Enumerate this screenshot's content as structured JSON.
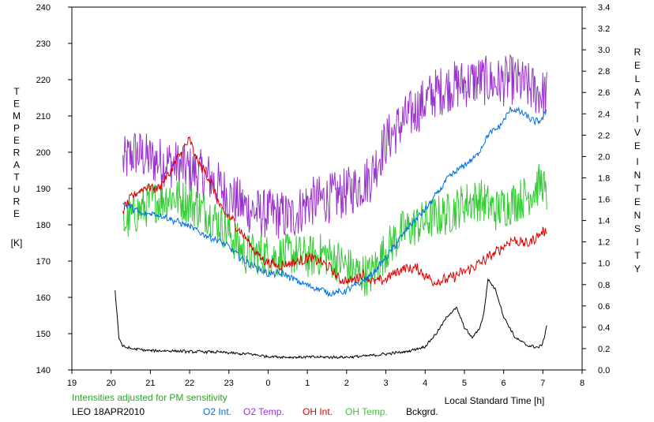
{
  "chart_data": {
    "type": "line",
    "title": "",
    "xlabel": "Local Standard Time [h]",
    "ylabel_left": "TEMPERATURE [K]",
    "ylabel_right": "RELATIVE INTENSITY",
    "ylabel_left_letters": [
      "T",
      "E",
      "M",
      "P",
      "E",
      "R",
      "A",
      "T",
      "U",
      "R",
      "E"
    ],
    "ylabel_left_unit": "[K]",
    "ylabel_right_letters_1": [
      "R",
      "E",
      "L",
      "A",
      "T",
      "I",
      "V",
      "E"
    ],
    "ylabel_right_letters_2": [
      "I",
      "N",
      "T",
      "E",
      "N",
      "S",
      "I",
      "T",
      "Y"
    ],
    "xlim": [
      19,
      32
    ],
    "ylim_left": [
      140,
      240
    ],
    "ylim_right": [
      0.0,
      3.4
    ],
    "x_ticks": [
      19,
      20,
      21,
      22,
      23,
      24,
      25,
      26,
      27,
      28,
      29,
      30,
      31,
      32
    ],
    "x_tick_labels": [
      "19",
      "20",
      "21",
      "22",
      "23",
      "0",
      "1",
      "2",
      "3",
      "4",
      "5",
      "6",
      "7",
      "8"
    ],
    "y_left_ticks": [
      "140",
      "150",
      "160",
      "170",
      "180",
      "190",
      "200",
      "210",
      "220",
      "230",
      "240"
    ],
    "y_right_ticks": [
      "0.0",
      "0.2",
      "0.4",
      "0.6",
      "0.8",
      "1.0",
      "1.2",
      "1.4",
      "1.6",
      "1.8",
      "2.0",
      "2.2",
      "2.4",
      "2.6",
      "2.8",
      "3.0",
      "3.2",
      "3.4"
    ],
    "grid": false,
    "note": "Intensities adjusted for PM sensitivity",
    "station": "LEO 18APR2010",
    "series": [
      {
        "name": "O2 Int.",
        "color": "#0070e0",
        "axis": "right",
        "noise": 0.02,
        "x": [
          20.3,
          20.5,
          20.8,
          21.0,
          21.3,
          21.6,
          21.9,
          22.2,
          22.5,
          22.8,
          23.0,
          23.3,
          23.6,
          24.0,
          24.4,
          24.8,
          25.2,
          25.6,
          25.9,
          26.3,
          26.6,
          27.0,
          27.3,
          27.6,
          28.0,
          28.3,
          28.6,
          29.0,
          29.3,
          29.6,
          29.9,
          30.2,
          30.5,
          30.8,
          31.0,
          31.1
        ],
        "y": [
          1.55,
          1.53,
          1.45,
          1.47,
          1.45,
          1.4,
          1.36,
          1.3,
          1.25,
          1.2,
          1.15,
          1.05,
          0.98,
          0.9,
          0.9,
          0.82,
          0.77,
          0.72,
          0.73,
          0.8,
          0.88,
          1.05,
          1.2,
          1.35,
          1.5,
          1.65,
          1.8,
          1.92,
          2.0,
          2.2,
          2.28,
          2.45,
          2.4,
          2.32,
          2.35,
          2.45
        ]
      },
      {
        "name": "O2 Temp.",
        "color": "#9933cc",
        "axis": "left",
        "noise": 7,
        "x": [
          20.3,
          20.6,
          21.0,
          21.5,
          22.0,
          22.5,
          23.0,
          23.4,
          23.8,
          24.2,
          24.6,
          25.0,
          25.4,
          25.8,
          26.2,
          26.6,
          27.0,
          27.4,
          27.8,
          28.2,
          28.6,
          29.0,
          29.4,
          29.8,
          30.2,
          30.6,
          31.0,
          31.1
        ],
        "y": [
          197,
          200,
          198,
          197,
          195,
          193,
          188,
          185,
          183,
          183,
          182,
          186,
          187,
          188,
          190,
          193,
          203,
          208,
          212,
          216,
          218,
          219,
          220,
          219,
          220,
          218,
          216,
          216
        ]
      },
      {
        "name": "OH Int.",
        "color": "#dd0000",
        "axis": "right",
        "noise": 0.03,
        "x": [
          20.3,
          20.6,
          20.9,
          21.2,
          21.5,
          21.8,
          22.0,
          22.2,
          22.5,
          22.8,
          23.1,
          23.4,
          23.8,
          24.2,
          24.6,
          25.0,
          25.3,
          25.6,
          25.8,
          26.1,
          26.4,
          26.7,
          27.0,
          27.4,
          27.8,
          28.2,
          28.6,
          29.0,
          29.4,
          29.8,
          30.2,
          30.6,
          31.1
        ],
        "y": [
          1.5,
          1.65,
          1.72,
          1.7,
          1.85,
          2.05,
          2.15,
          1.95,
          1.8,
          1.5,
          1.4,
          1.25,
          1.05,
          0.98,
          1.0,
          1.05,
          1.02,
          0.95,
          0.85,
          0.83,
          0.9,
          0.82,
          0.85,
          0.95,
          0.95,
          0.83,
          0.85,
          0.92,
          1.0,
          1.1,
          1.22,
          1.18,
          1.32
        ]
      },
      {
        "name": "OH Temp.",
        "color": "#33cc33",
        "axis": "left",
        "noise": 6,
        "x": [
          20.3,
          20.6,
          21.0,
          21.5,
          22.0,
          22.5,
          23.0,
          23.4,
          23.8,
          24.2,
          24.6,
          25.0,
          25.4,
          25.8,
          26.2,
          26.6,
          27.0,
          27.4,
          27.8,
          28.2,
          28.6,
          29.0,
          29.4,
          29.8,
          30.2,
          30.6,
          31.0,
          31.1
        ],
        "y": [
          180,
          183,
          186,
          188,
          186,
          183,
          178,
          172,
          172,
          171,
          172,
          171,
          172,
          170,
          167,
          166,
          173,
          178,
          180,
          182,
          183,
          186,
          187,
          184,
          186,
          188,
          192,
          185
        ]
      },
      {
        "name": "Bckgrd.",
        "color": "#000000",
        "axis": "right",
        "noise": 0.008,
        "x": [
          20.1,
          20.2,
          20.3,
          20.5,
          21.0,
          21.5,
          22.0,
          22.5,
          23.0,
          23.3,
          23.5,
          23.9,
          24.5,
          25.0,
          25.5,
          26.0,
          26.5,
          27.0,
          27.5,
          28.0,
          28.3,
          28.6,
          28.8,
          29.0,
          29.2,
          29.4,
          29.5,
          29.6,
          29.8,
          30.0,
          30.3,
          30.6,
          30.9,
          31.0,
          31.1
        ],
        "y": [
          0.75,
          0.3,
          0.22,
          0.2,
          0.18,
          0.18,
          0.17,
          0.17,
          0.16,
          0.15,
          0.15,
          0.13,
          0.12,
          0.12,
          0.12,
          0.12,
          0.13,
          0.15,
          0.17,
          0.22,
          0.35,
          0.52,
          0.58,
          0.4,
          0.3,
          0.4,
          0.54,
          0.85,
          0.75,
          0.5,
          0.3,
          0.23,
          0.21,
          0.25,
          0.42
        ]
      }
    ]
  }
}
